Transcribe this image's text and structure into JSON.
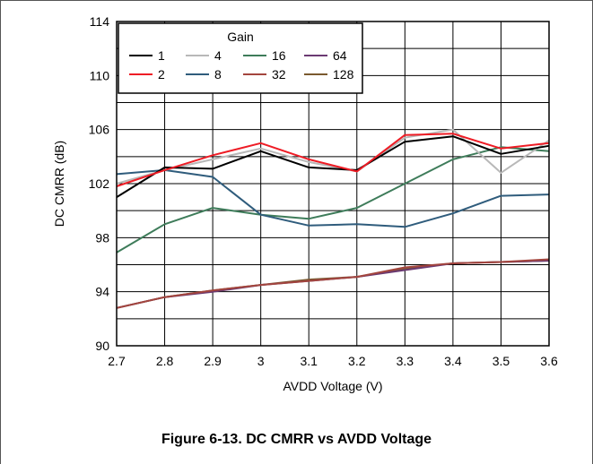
{
  "caption": "Figure 6-13. DC CMRR vs AVDD Voltage",
  "chart_data": {
    "type": "line",
    "title": "",
    "xlabel": "AVDD Voltage (V)",
    "ylabel": "DC CMRR (dB)",
    "xlim": [
      2.7,
      3.6
    ],
    "ylim": [
      90,
      114
    ],
    "xticks": [
      2.7,
      2.8,
      2.9,
      3.0,
      3.1,
      3.2,
      3.3,
      3.4,
      3.5,
      3.6
    ],
    "xtick_labels": [
      "2.7",
      "2.8",
      "2.9",
      "3",
      "3.1",
      "3.2",
      "3.3",
      "3.4",
      "3.5",
      "3.6"
    ],
    "yticks": [
      90,
      94,
      98,
      102,
      106,
      110,
      114
    ],
    "ytick_labels": [
      "90",
      "94",
      "98",
      "102",
      "106",
      "110",
      "114"
    ],
    "grid": true,
    "legend": {
      "title": "Gain",
      "placement": "top-left",
      "columns": 4
    },
    "x": [
      2.7,
      2.8,
      2.9,
      3.0,
      3.1,
      3.2,
      3.3,
      3.4,
      3.5,
      3.6
    ],
    "series": [
      {
        "name": "1",
        "color": "#000000",
        "values": [
          101.0,
          103.2,
          103.1,
          104.4,
          103.2,
          103.0,
          105.1,
          105.5,
          104.2,
          104.8
        ]
      },
      {
        "name": "2",
        "color": "#ee1c25",
        "values": [
          101.8,
          103.0,
          104.1,
          105.0,
          103.8,
          102.9,
          105.6,
          105.7,
          104.6,
          105.0
        ]
      },
      {
        "name": "4",
        "color": "#b8b8b8",
        "values": [
          102.0,
          103.0,
          103.8,
          104.6,
          103.6,
          102.9,
          105.4,
          106.0,
          102.8,
          105.2
        ]
      },
      {
        "name": "8",
        "color": "#2f5c7c",
        "values": [
          102.7,
          103.0,
          102.5,
          99.7,
          98.9,
          99.0,
          98.8,
          99.8,
          101.1,
          101.2
        ]
      },
      {
        "name": "16",
        "color": "#3e7c5a",
        "values": [
          96.9,
          99.0,
          100.2,
          99.7,
          99.4,
          100.2,
          102.0,
          103.8,
          104.7,
          104.4
        ]
      },
      {
        "name": "32",
        "color": "#a3453e",
        "values": [
          92.8,
          93.6,
          94.1,
          94.5,
          94.8,
          95.1,
          95.8,
          96.1,
          96.2,
          96.4
        ]
      },
      {
        "name": "64",
        "color": "#6b3a72",
        "values": [
          92.8,
          93.6,
          94.0,
          94.5,
          94.8,
          95.1,
          95.6,
          96.1,
          96.2,
          96.3
        ]
      },
      {
        "name": "128",
        "color": "#7a5a2e",
        "values": [
          92.8,
          93.6,
          94.1,
          94.5,
          94.9,
          95.1,
          95.7,
          96.1,
          96.2,
          96.3
        ]
      }
    ]
  }
}
